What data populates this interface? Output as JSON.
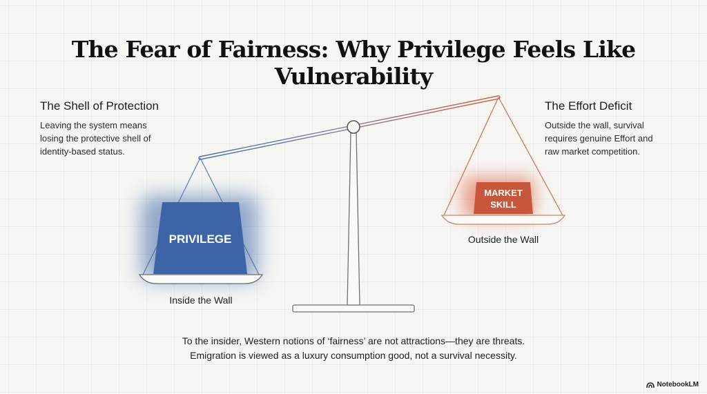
{
  "title": "The Fear of Fairness: Why Privilege Feels Like Vulnerability",
  "left_block": {
    "heading": "The Shell of Protection",
    "lines": [
      "Leaving the system means",
      "losing the protective shell of",
      "identity-based status."
    ]
  },
  "right_block": {
    "heading": "The Effort Deficit",
    "lines": [
      "Outside the wall, survival",
      "requires genuine Effort and",
      "raw market competition."
    ]
  },
  "scale": {
    "left_weight": "PRIVILEGE",
    "left_label": "Inside the Wall",
    "right_weight_lines": [
      "MARKET",
      "SKILL"
    ],
    "right_label": "Outside the Wall"
  },
  "caption": {
    "line1": "To the insider, Western notions of ‘fairness’ are not attractions—they are threats.",
    "line2": "Emigration is viewed as a luxury consumption good, not a survival necessity."
  },
  "brand": "NotebookLM",
  "colors": {
    "blue": "#3f67a8",
    "red": "#d0603f",
    "line_gray": "#6b6b6b"
  }
}
